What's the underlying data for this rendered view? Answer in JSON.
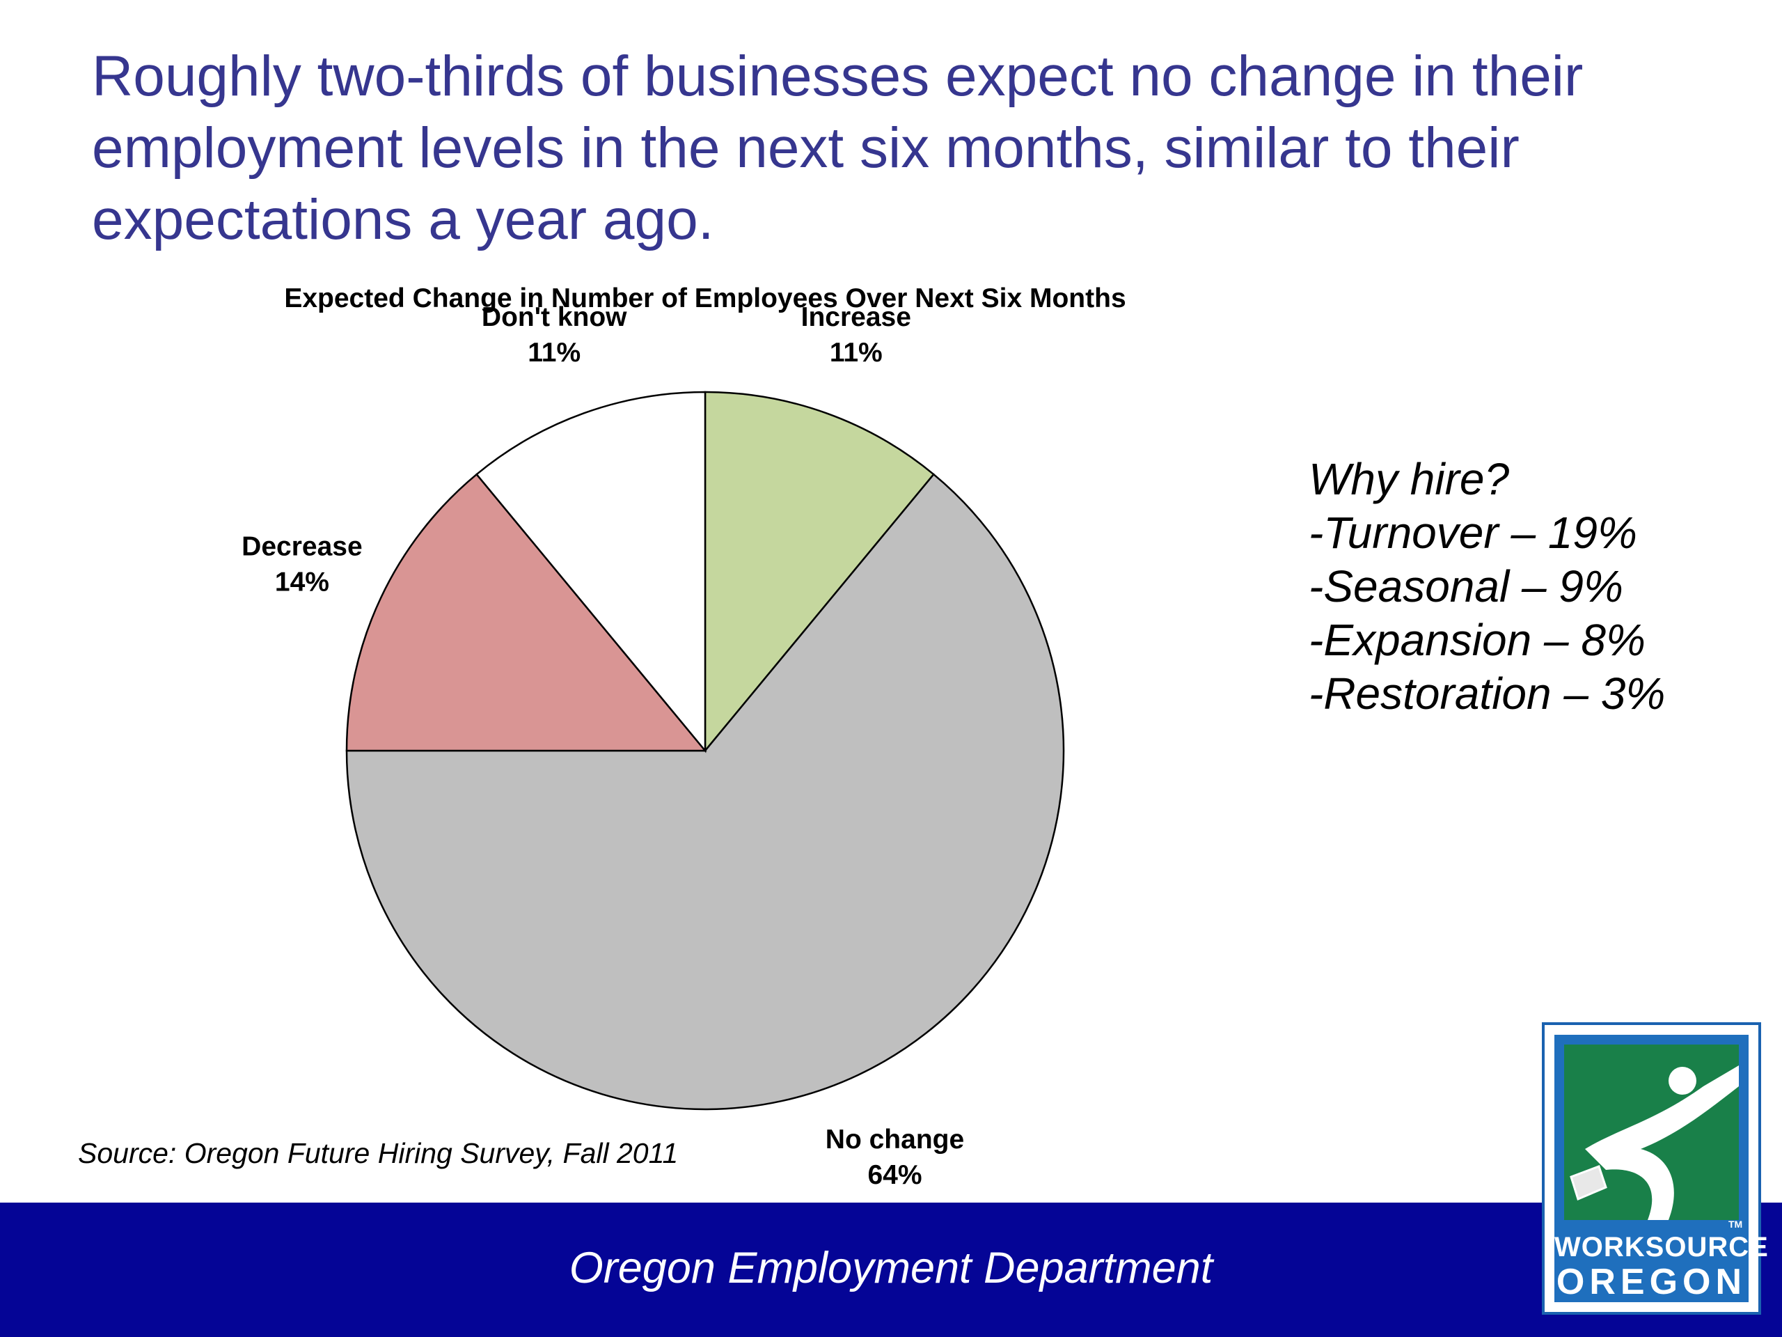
{
  "headline": {
    "lines": [
      "Roughly two-thirds of businesses expect no change in their",
      "employment levels in the next six months, similar to their",
      "expectations a year ago."
    ]
  },
  "chart_data": {
    "type": "pie",
    "title": "Expected Change in Number of Employees Over Next Six Months",
    "slices": [
      {
        "label": "Increase",
        "value": 11,
        "value_label": "11%",
        "color": "#c5d79e"
      },
      {
        "label": "No change",
        "value": 64,
        "value_label": "64%",
        "color": "#bfbfbf"
      },
      {
        "label": "Decrease",
        "value": 14,
        "value_label": "14%",
        "color": "#d99594"
      },
      {
        "label": "Don't know",
        "value": 11,
        "value_label": "11%",
        "color": "#ffffff"
      }
    ],
    "start": "12 o'clock",
    "direction": "clockwise",
    "legend": "none; labels outside slices"
  },
  "why_hire": {
    "title": "Why hire?",
    "items": [
      "-Turnover – 19%",
      "-Seasonal – 9%",
      "-Expansion – 8%",
      "-Restoration – 3%"
    ]
  },
  "source": "Source: Oregon Future Hiring Survey, Fall 2011",
  "footer": {
    "text": "Oregon Employment Department",
    "color": "#050596"
  },
  "logo": {
    "line1": "WORKSOURCE",
    "line2": "OREGON",
    "tm": "TM"
  },
  "colors": {
    "headline": "#36368f",
    "logo_blue": "#1f6fbd",
    "logo_green": "#198049"
  }
}
